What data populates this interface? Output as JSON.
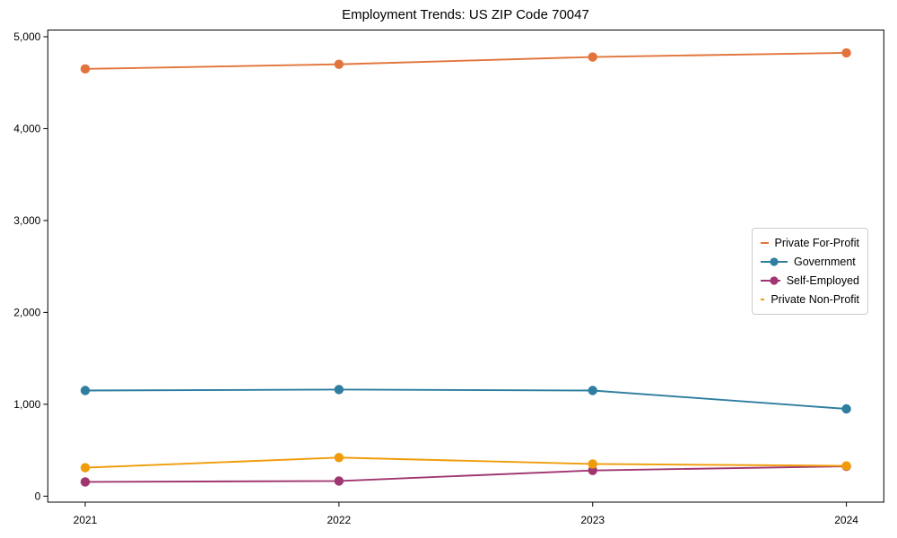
{
  "chart_data": {
    "type": "line",
    "title": "Employment Trends: US ZIP Code 70047",
    "xlabel": "",
    "ylabel": "",
    "x_labels": [
      "2021",
      "2022",
      "2023",
      "2024"
    ],
    "yticks": [
      0,
      1000,
      2000,
      3000,
      4000,
      5000
    ],
    "ytick_labels": [
      "0",
      "1,000",
      "2,000",
      "3,000",
      "4,000",
      "5,000"
    ],
    "ylim": [
      -65,
      5073
    ],
    "grid": false,
    "legend_position": "center-right",
    "marker": "circle",
    "series": [
      {
        "name": "Private For-Profit",
        "color": "#e2743b",
        "values": [
          4650,
          4700,
          4780,
          4825
        ]
      },
      {
        "name": "Government",
        "color": "#2e7ea0",
        "values": [
          1150,
          1160,
          1150,
          950
        ]
      },
      {
        "name": "Self-Employed",
        "color": "#a03670",
        "values": [
          155,
          165,
          280,
          325
        ]
      },
      {
        "name": "Private Non-Profit",
        "color": "#f09c0a",
        "values": [
          310,
          420,
          350,
          330
        ]
      }
    ],
    "axis_color": "#000000",
    "legend_border_color": "#cccccc"
  }
}
